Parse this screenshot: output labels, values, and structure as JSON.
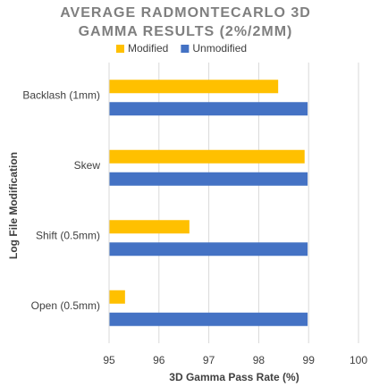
{
  "chart_data": {
    "type": "bar",
    "orientation": "horizontal",
    "title": "AVERAGE RADMONTECARLO 3D GAMMA RESULTS (2%/2MM)",
    "x_label": "3D Gamma Pass Rate (%)",
    "y_label": "Log File Modification",
    "categories": [
      "Backlash (1mm)",
      "Skew",
      "Shift (0.5mm)",
      "Open (0.5mm)"
    ],
    "series": [
      {
        "name": "Modified",
        "color": "#ffc000",
        "values": [
          98.39,
          98.92,
          96.61,
          95.32
        ]
      },
      {
        "name": "Unmodified",
        "color": "#4472c4",
        "values": [
          98.98,
          98.98,
          98.98,
          98.98
        ]
      }
    ],
    "xlim": [
      95,
      100
    ],
    "xticks": [
      95,
      96,
      97,
      98,
      99,
      100
    ],
    "grid": true,
    "legend": "top"
  }
}
